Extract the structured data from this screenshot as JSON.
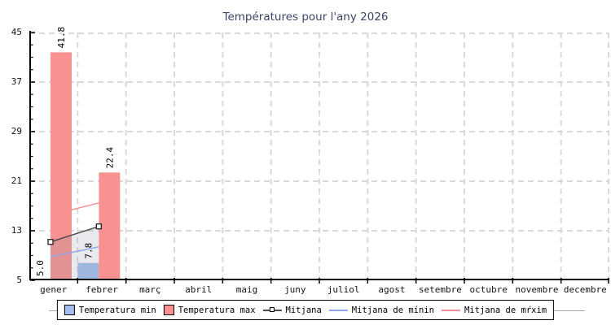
{
  "title": "Températures pour l'any 2026",
  "chart_data": {
    "type": "bar",
    "title": "Températures pour l'any 2026",
    "categories": [
      "gener",
      "febrer",
      "març",
      "abril",
      "maig",
      "juny",
      "juliol",
      "agost",
      "setembre",
      "octubre",
      "novembre",
      "decembre"
    ],
    "ylim": [
      5,
      45
    ],
    "y_major_ticks": [
      45,
      37,
      29,
      21,
      13,
      5
    ],
    "y_minor_step": 2,
    "grid": true,
    "grid_color": "#d9d9d9",
    "axis_color": "#000000",
    "legend_position": "bottom",
    "series": [
      {
        "name": "Temperatura min",
        "type": "bar",
        "color": "#a5beee",
        "values": [
          5.0,
          7.8,
          null,
          null,
          null,
          null,
          null,
          null,
          null,
          null,
          null,
          null
        ],
        "value_labels": true
      },
      {
        "name": "Temperatura max",
        "type": "bar",
        "color": "#f8918f",
        "values": [
          41.8,
          22.4,
          null,
          null,
          null,
          null,
          null,
          null,
          null,
          null,
          null,
          null
        ],
        "value_labels": true
      },
      {
        "name": "Mitjana",
        "type": "line",
        "color": "#4d4d4d",
        "marker": "open-square",
        "area_fill": "rgba(145,150,165,0.20)",
        "values": [
          11.2,
          13.7,
          null,
          null,
          null,
          null,
          null,
          null,
          null,
          null,
          null,
          null
        ]
      },
      {
        "name": "Mitjana de mínin",
        "type": "line",
        "color": "#8fa8e8",
        "values": [
          8.8,
          10.4,
          null,
          null,
          null,
          null,
          null,
          null,
          null,
          null,
          null,
          null
        ]
      },
      {
        "name": "Mitjana de mŕxim",
        "type": "line",
        "color": "#f59193",
        "values": [
          15.5,
          17.5,
          null,
          null,
          null,
          null,
          null,
          null,
          null,
          null,
          null,
          null
        ]
      }
    ]
  }
}
